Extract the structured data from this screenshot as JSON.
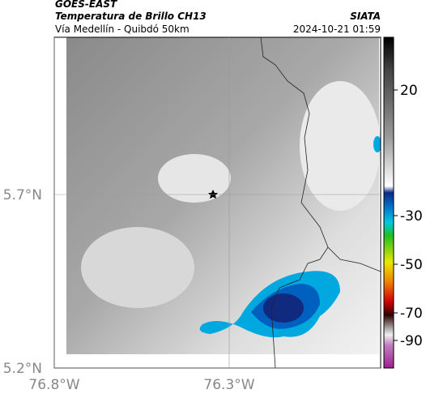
{
  "header": {
    "satellite": "GOES-EAST",
    "product": "Temperatura de Brillo CH13",
    "region": "Vía Medellín - Quibdó 50km",
    "source": "SIATA",
    "datetime": "2024-10-21 01:59"
  },
  "map": {
    "lat_ticks": [
      {
        "value": 5.7,
        "label": "5.7°N"
      },
      {
        "value": 5.2,
        "label": "5.2°N"
      }
    ],
    "lon_ticks": [
      {
        "value": -76.8,
        "label": "76.8°W"
      },
      {
        "value": -76.3,
        "label": "76.3°W"
      }
    ]
  },
  "colorbar": {
    "ticks": [
      20,
      -30,
      -50,
      -70,
      -90
    ]
  }
}
